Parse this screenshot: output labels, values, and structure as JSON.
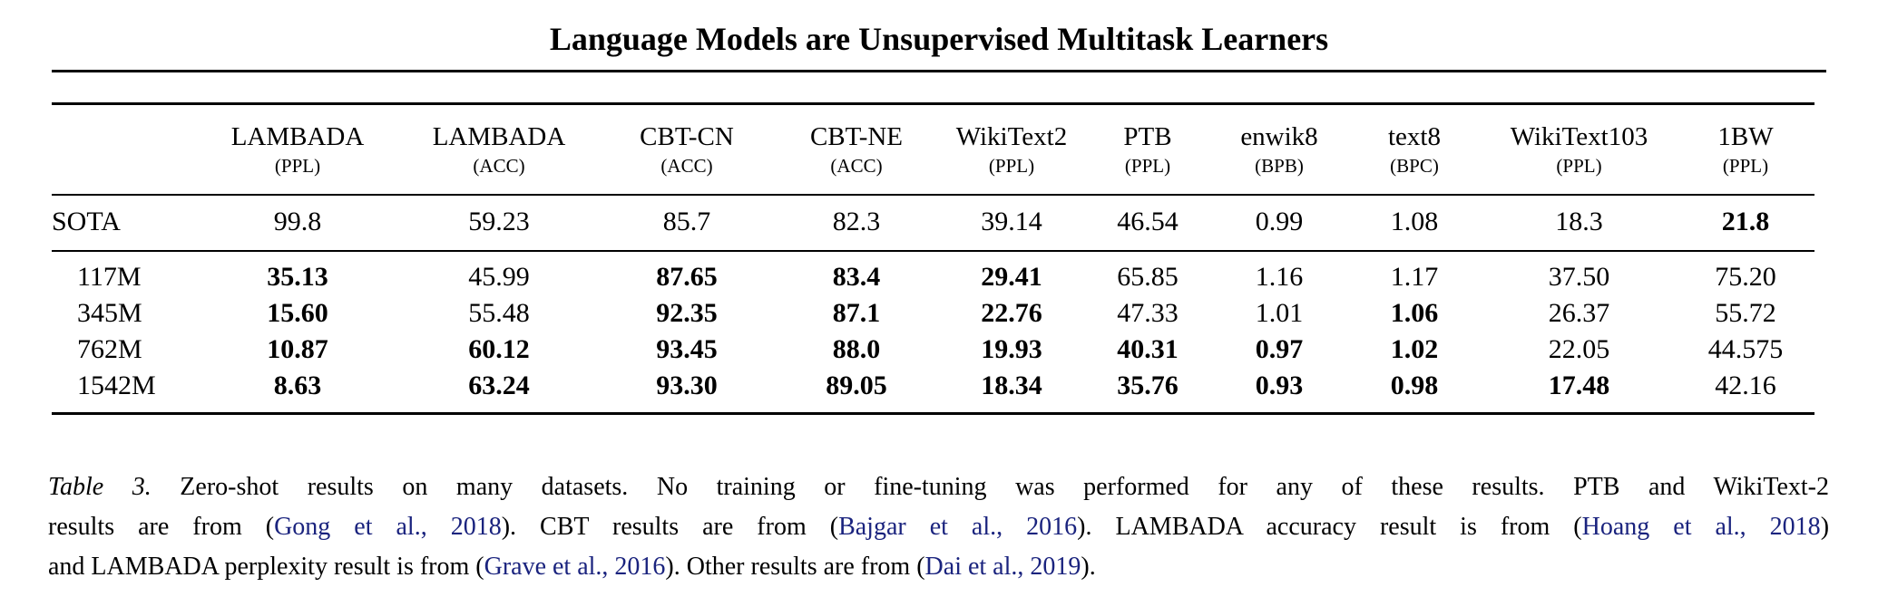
{
  "page": {
    "running_title": "Language Models are Unsupervised Multitask Learners"
  },
  "colors": {
    "text": "#000000",
    "citation_link": "#1a237e"
  },
  "table": {
    "columns": [
      {
        "name": "",
        "unit": ""
      },
      {
        "name": "LAMBADA",
        "unit": "(PPL)"
      },
      {
        "name": "LAMBADA",
        "unit": "(ACC)"
      },
      {
        "name": "CBT-CN",
        "unit": "(ACC)"
      },
      {
        "name": "CBT-NE",
        "unit": "(ACC)"
      },
      {
        "name": "WikiText2",
        "unit": "(PPL)"
      },
      {
        "name": "PTB",
        "unit": "(PPL)"
      },
      {
        "name": "enwik8",
        "unit": "(BPB)"
      },
      {
        "name": "text8",
        "unit": "(BPC)"
      },
      {
        "name": "WikiText103",
        "unit": "(PPL)"
      },
      {
        "name": "1BW",
        "unit": "(PPL)"
      }
    ],
    "sota_row": {
      "label": "SOTA",
      "values": [
        {
          "v": "99.8"
        },
        {
          "v": "59.23"
        },
        {
          "v": "85.7"
        },
        {
          "v": "82.3"
        },
        {
          "v": "39.14"
        },
        {
          "v": "46.54"
        },
        {
          "v": "0.99"
        },
        {
          "v": "1.08"
        },
        {
          "v": "18.3"
        },
        {
          "v": "21.8",
          "bold": true
        }
      ]
    },
    "model_rows": [
      {
        "label": "117M",
        "values": [
          {
            "v": "35.13",
            "bold": true
          },
          {
            "v": "45.99"
          },
          {
            "v": "87.65",
            "bold": true
          },
          {
            "v": "83.4",
            "bold": true
          },
          {
            "v": "29.41",
            "bold": true
          },
          {
            "v": "65.85"
          },
          {
            "v": "1.16"
          },
          {
            "v": "1.17"
          },
          {
            "v": "37.50"
          },
          {
            "v": "75.20"
          }
        ]
      },
      {
        "label": "345M",
        "values": [
          {
            "v": "15.60",
            "bold": true
          },
          {
            "v": "55.48"
          },
          {
            "v": "92.35",
            "bold": true
          },
          {
            "v": "87.1",
            "bold": true
          },
          {
            "v": "22.76",
            "bold": true
          },
          {
            "v": "47.33"
          },
          {
            "v": "1.01"
          },
          {
            "v": "1.06",
            "bold": true
          },
          {
            "v": "26.37"
          },
          {
            "v": "55.72"
          }
        ]
      },
      {
        "label": "762M",
        "values": [
          {
            "v": "10.87",
            "bold": true
          },
          {
            "v": "60.12",
            "bold": true
          },
          {
            "v": "93.45",
            "bold": true
          },
          {
            "v": "88.0",
            "bold": true
          },
          {
            "v": "19.93",
            "bold": true
          },
          {
            "v": "40.31",
            "bold": true
          },
          {
            "v": "0.97",
            "bold": true
          },
          {
            "v": "1.02",
            "bold": true
          },
          {
            "v": "22.05"
          },
          {
            "v": "44.575"
          }
        ]
      },
      {
        "label": "1542M",
        "values": [
          {
            "v": "8.63",
            "bold": true
          },
          {
            "v": "63.24",
            "bold": true
          },
          {
            "v": "93.30",
            "bold": true
          },
          {
            "v": "89.05",
            "bold": true
          },
          {
            "v": "18.34",
            "bold": true
          },
          {
            "v": "35.76",
            "bold": true
          },
          {
            "v": "0.93",
            "bold": true
          },
          {
            "v": "0.98",
            "bold": true
          },
          {
            "v": "17.48",
            "bold": true
          },
          {
            "v": "42.16"
          }
        ]
      }
    ]
  },
  "caption": {
    "lines": [
      {
        "stretch": true,
        "segments": [
          {
            "text": "Table 3.",
            "style": "italic"
          },
          {
            "text": " Zero-shot results on many datasets.  No training or fine-tuning was performed for any of these results.  PTB and WikiText-2",
            "style": "normal"
          }
        ]
      },
      {
        "stretch": true,
        "segments": [
          {
            "text": "results are from (",
            "style": "normal"
          },
          {
            "text": "Gong et al., 2018",
            "style": "cite"
          },
          {
            "text": "). CBT results are from (",
            "style": "normal"
          },
          {
            "text": "Bajgar et al., 2016",
            "style": "cite"
          },
          {
            "text": "). LAMBADA accuracy result is from (",
            "style": "normal"
          },
          {
            "text": "Hoang et al., 2018",
            "style": "cite"
          },
          {
            "text": ")",
            "style": "normal"
          }
        ]
      },
      {
        "stretch": false,
        "segments": [
          {
            "text": "and LAMBADA perplexity result is from (",
            "style": "normal"
          },
          {
            "text": "Grave et al., 2016",
            "style": "cite"
          },
          {
            "text": "). Other results are from (",
            "style": "normal"
          },
          {
            "text": "Dai et al., 2019",
            "style": "cite"
          },
          {
            "text": ").",
            "style": "normal"
          }
        ]
      }
    ]
  }
}
